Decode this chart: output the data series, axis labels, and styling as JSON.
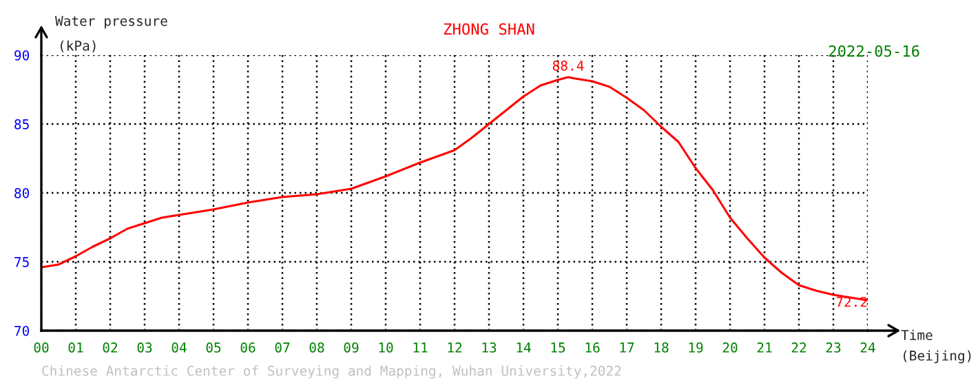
{
  "chart_data": {
    "type": "line",
    "title": "ZHONG SHAN",
    "subtitle": "2022-05-16",
    "xlabel": "Time\n(Beijing)",
    "ylabel": "Water pressure\n(kPa)",
    "x": [
      0,
      0.5,
      1,
      1.5,
      2,
      2.5,
      3,
      3.5,
      4,
      5,
      6,
      7,
      8,
      9,
      10,
      11,
      12,
      12.5,
      13,
      13.5,
      14,
      14.5,
      15,
      15.3,
      15.5,
      16,
      16.5,
      17,
      17.5,
      18,
      18.5,
      19,
      19.5,
      20,
      20.5,
      21,
      21.5,
      22,
      22.5,
      23,
      23.5,
      24
    ],
    "series": [
      {
        "color": "#ff0000",
        "values": [
          74.6,
          74.8,
          75.4,
          76.1,
          76.7,
          77.4,
          77.8,
          78.2,
          78.4,
          78.8,
          79.3,
          79.7,
          79.9,
          80.3,
          81.2,
          82.2,
          83.1,
          84.0,
          85.0,
          86.0,
          87.0,
          87.8,
          88.2,
          88.4,
          88.3,
          88.1,
          87.7,
          86.9,
          86.0,
          84.8,
          83.7,
          81.8,
          80.2,
          78.2,
          76.7,
          75.3,
          74.2,
          73.3,
          72.9,
          72.6,
          72.4,
          72.2
        ]
      }
    ],
    "xlim": [
      0,
      24
    ],
    "ylim": [
      70,
      90
    ],
    "xticks": [
      {
        "value": 0,
        "label": "00"
      },
      {
        "value": 1,
        "label": "01"
      },
      {
        "value": 2,
        "label": "02"
      },
      {
        "value": 3,
        "label": "03"
      },
      {
        "value": 4,
        "label": "04"
      },
      {
        "value": 5,
        "label": "05"
      },
      {
        "value": 6,
        "label": "06"
      },
      {
        "value": 7,
        "label": "07"
      },
      {
        "value": 8,
        "label": "08"
      },
      {
        "value": 9,
        "label": "09"
      },
      {
        "value": 10,
        "label": "10"
      },
      {
        "value": 11,
        "label": "11"
      },
      {
        "value": 12,
        "label": "12"
      },
      {
        "value": 13,
        "label": "13"
      },
      {
        "value": 14,
        "label": "14"
      },
      {
        "value": 15,
        "label": "15"
      },
      {
        "value": 16,
        "label": "16"
      },
      {
        "value": 17,
        "label": "17"
      },
      {
        "value": 18,
        "label": "18"
      },
      {
        "value": 19,
        "label": "19"
      },
      {
        "value": 20,
        "label": "20"
      },
      {
        "value": 21,
        "label": "21"
      },
      {
        "value": 22,
        "label": "22"
      },
      {
        "value": 23,
        "label": "23"
      },
      {
        "value": 24,
        "label": "24"
      }
    ],
    "yticks": [
      70,
      75,
      80,
      85,
      90
    ],
    "grid": true,
    "line_style": "solid",
    "marker": "none",
    "annotations": [
      {
        "text": "88.4",
        "x": 15.3,
        "y": 88.4
      },
      {
        "text": "72.2",
        "x": 24,
        "y": 72.2
      },
      "Chinese Antarctic Center of Surveying and Mapping, Wuhan University,2022"
    ]
  }
}
